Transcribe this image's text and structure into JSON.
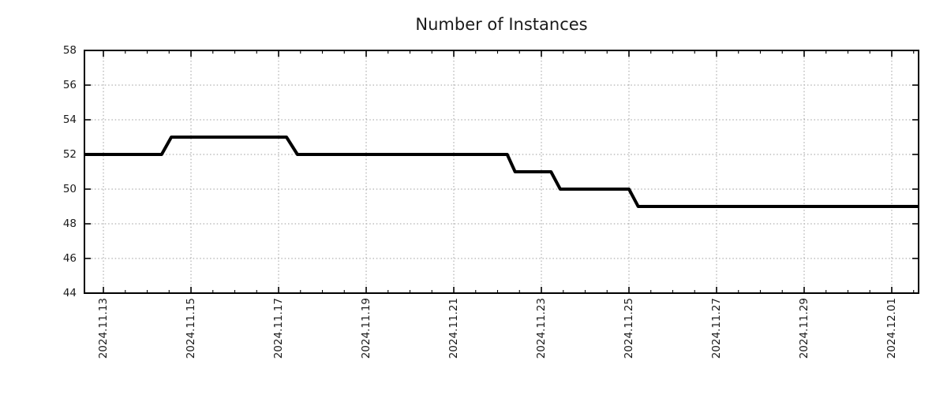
{
  "chart_data": {
    "type": "line",
    "line_style": "step",
    "title": "Number of Instances",
    "legend": {
      "show": false
    },
    "grid": {
      "show": true,
      "color": "#9e9e9e",
      "pattern": "dotted"
    },
    "colors": {
      "series_line": "#000000",
      "axis_border": "#000000",
      "tick_text": "#1a1a1a",
      "background": "#ffffff"
    },
    "x_axis": {
      "label": "",
      "unit": "date",
      "range_days": [
        12.567,
        31.613
      ],
      "minor_tick_interval_days": 0.5,
      "major_ticks": [
        {
          "day": 13,
          "label": "2024.11.13"
        },
        {
          "day": 15,
          "label": "2024.11.15"
        },
        {
          "day": 17,
          "label": "2024.11.17"
        },
        {
          "day": 19,
          "label": "2024.11.19"
        },
        {
          "day": 21,
          "label": "2024.11.21"
        },
        {
          "day": 23,
          "label": "2024.11.23"
        },
        {
          "day": 25,
          "label": "2024.11.25"
        },
        {
          "day": 27,
          "label": "2024.11.27"
        },
        {
          "day": 29,
          "label": "2024.11.29"
        },
        {
          "day": 31,
          "label": "2024.12.01"
        }
      ]
    },
    "y_axis": {
      "label": "",
      "range": [
        44,
        58
      ],
      "tick_step": 2,
      "ticks": [
        44,
        46,
        48,
        50,
        52,
        54,
        56,
        58
      ]
    },
    "series": [
      {
        "name": "instances",
        "color": "#000000",
        "stroke_width": 4,
        "points": [
          {
            "date": "2024-11-12",
            "day": 12.567,
            "value": 52
          },
          {
            "date": "2024-11-14",
            "day": 14.33,
            "value": 52
          },
          {
            "date": "2024-11-14",
            "day": 14.55,
            "value": 53
          },
          {
            "date": "2024-11-17",
            "day": 17.18,
            "value": 53
          },
          {
            "date": "2024-11-17",
            "day": 17.43,
            "value": 52
          },
          {
            "date": "2024-11-22",
            "day": 22.22,
            "value": 52
          },
          {
            "date": "2024-11-22",
            "day": 22.4,
            "value": 51
          },
          {
            "date": "2024-11-23",
            "day": 23.22,
            "value": 51
          },
          {
            "date": "2024-11-23",
            "day": 23.43,
            "value": 50
          },
          {
            "date": "2024-11-25",
            "day": 25.0,
            "value": 50
          },
          {
            "date": "2024-11-25",
            "day": 25.21,
            "value": 49
          },
          {
            "date": "2024-12-01",
            "day": 31.613,
            "value": 49
          }
        ]
      }
    ]
  }
}
